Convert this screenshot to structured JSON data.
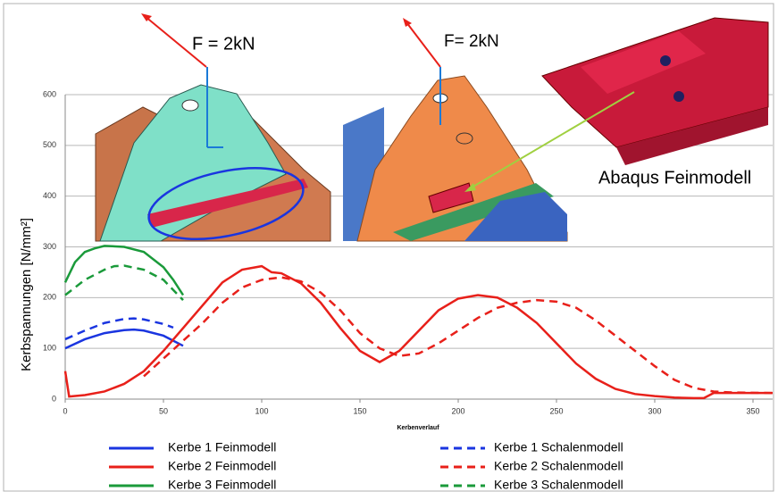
{
  "chart_data": {
    "type": "line",
    "y_label": "Kerbspannungen  [N/mm²]",
    "x_label": "Kerbenverlauf",
    "annotations": [
      "F = 2kN",
      "F= 2kN",
      "Abaqus Feinmodell"
    ],
    "xlim": [
      0,
      360
    ],
    "xticks": [
      0,
      50,
      100,
      150,
      200,
      250,
      300,
      350
    ],
    "ylim": [
      0,
      600
    ],
    "yticks": [
      0,
      100,
      200,
      300,
      400,
      500,
      600
    ],
    "grid": true,
    "series": [
      {
        "name": "Kerbe 1 Feinmodell",
        "color": "#1a35e0",
        "style": "solid",
        "x": [
          0,
          10,
          20,
          30,
          35,
          40,
          50,
          55,
          60
        ],
        "values": [
          100,
          118,
          130,
          136,
          137,
          135,
          125,
          115,
          105
        ]
      },
      {
        "name": "Kerbe 1 Schalenmodell",
        "color": "#1a35e0",
        "style": "dashed",
        "x": [
          0,
          10,
          20,
          30,
          35,
          40,
          50,
          55
        ],
        "values": [
          118,
          135,
          150,
          158,
          159,
          157,
          148,
          141
        ]
      },
      {
        "name": "Kerbe 2 Feinmodell",
        "color": "#e8201a",
        "style": "solid",
        "x": [
          0,
          2,
          10,
          20,
          30,
          40,
          50,
          60,
          70,
          80,
          90,
          100,
          105,
          110,
          120,
          130,
          140,
          150,
          160,
          170,
          180,
          190,
          200,
          210,
          220,
          230,
          240,
          250,
          260,
          270,
          280,
          290,
          300,
          310,
          320,
          325,
          330,
          340,
          360
        ],
        "values": [
          55,
          5,
          8,
          15,
          30,
          55,
          95,
          140,
          185,
          230,
          255,
          262,
          250,
          248,
          228,
          190,
          140,
          95,
          73,
          95,
          135,
          175,
          198,
          205,
          200,
          180,
          150,
          110,
          70,
          40,
          20,
          10,
          6,
          3,
          2,
          2,
          12,
          12,
          12
        ]
      },
      {
        "name": "Kerbe 2 Schalenmodell",
        "color": "#e8201a",
        "style": "dashed",
        "x": [
          40,
          50,
          60,
          70,
          80,
          90,
          100,
          110,
          120,
          130,
          140,
          150,
          160,
          170,
          180,
          190,
          200,
          210,
          220,
          230,
          240,
          250,
          260,
          270,
          280,
          290,
          300,
          310,
          320,
          330,
          340,
          360
        ],
        "values": [
          45,
          80,
          115,
          150,
          190,
          220,
          235,
          240,
          232,
          210,
          175,
          130,
          100,
          85,
          90,
          110,
          135,
          160,
          180,
          190,
          195,
          192,
          180,
          155,
          125,
          95,
          65,
          38,
          22,
          15,
          13,
          12
        ]
      },
      {
        "name": "Kerbe 3 Feinmodell",
        "color": "#1a9a3a",
        "style": "solid",
        "x": [
          0,
          5,
          10,
          15,
          20,
          30,
          40,
          50,
          55,
          60
        ],
        "values": [
          230,
          270,
          290,
          297,
          302,
          300,
          290,
          260,
          235,
          205
        ]
      },
      {
        "name": "Kerbe 3 Schalenmodell",
        "color": "#1a9a3a",
        "style": "dashed",
        "x": [
          0,
          10,
          20,
          25,
          30,
          40,
          50,
          60
        ],
        "values": [
          205,
          235,
          255,
          262,
          263,
          255,
          235,
          195
        ]
      }
    ]
  }
}
